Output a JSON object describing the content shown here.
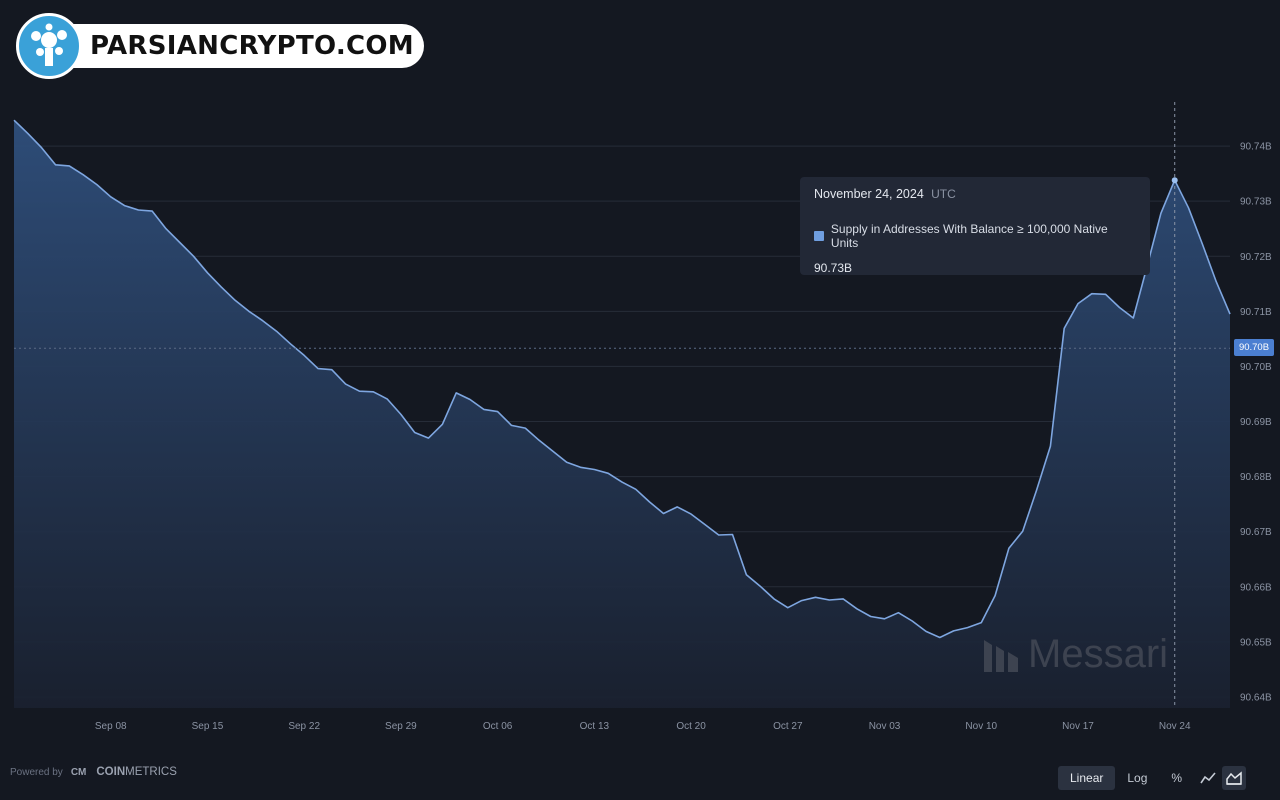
{
  "brand": {
    "text": "PARSIANCRYPTO.COM"
  },
  "watermark": {
    "text": "Messari"
  },
  "footer": {
    "powered_by": "Powered by",
    "provider_bold": "COIN",
    "provider_thin": "METRICS",
    "provider_icon": "CM"
  },
  "controls": {
    "scale_options": [
      "Linear",
      "Log",
      "%"
    ],
    "active_scale": "Linear",
    "icons": [
      "line-chart-icon",
      "area-chart-icon"
    ],
    "active_icon": "area-chart-icon"
  },
  "tooltip": {
    "date": "November 24, 2024",
    "timezone": "UTC",
    "series_label": "Supply in Addresses With Balance ≥ 100,000 Native Units",
    "value": "90.73B",
    "series_color": "#6f9ee0"
  },
  "current_value_label": "90.70B",
  "colors": {
    "background": "#141821",
    "line": "#7ea6e0",
    "area_top": "#2f4f7c",
    "accent": "#4b7fd1"
  },
  "chart_data": {
    "type": "area",
    "title": "",
    "xlabel": "",
    "ylabel": "",
    "series": [
      {
        "name": "Supply in Addresses With Balance ≥ 100,000 Native Units",
        "x": [
          "2024-09-01",
          "2024-09-02",
          "2024-09-03",
          "2024-09-04",
          "2024-09-05",
          "2024-09-06",
          "2024-09-07",
          "2024-09-08",
          "2024-09-09",
          "2024-09-10",
          "2024-09-11",
          "2024-09-12",
          "2024-09-13",
          "2024-09-14",
          "2024-09-15",
          "2024-09-16",
          "2024-09-17",
          "2024-09-18",
          "2024-09-19",
          "2024-09-20",
          "2024-09-21",
          "2024-09-22",
          "2024-09-23",
          "2024-09-24",
          "2024-09-25",
          "2024-09-26",
          "2024-09-27",
          "2024-09-28",
          "2024-09-29",
          "2024-09-30",
          "2024-10-01",
          "2024-10-02",
          "2024-10-03",
          "2024-10-04",
          "2024-10-05",
          "2024-10-06",
          "2024-10-07",
          "2024-10-08",
          "2024-10-09",
          "2024-10-10",
          "2024-10-11",
          "2024-10-12",
          "2024-10-13",
          "2024-10-14",
          "2024-10-15",
          "2024-10-16",
          "2024-10-17",
          "2024-10-18",
          "2024-10-19",
          "2024-10-20",
          "2024-10-21",
          "2024-10-22",
          "2024-10-23",
          "2024-10-24",
          "2024-10-25",
          "2024-10-26",
          "2024-10-27",
          "2024-10-28",
          "2024-10-29",
          "2024-10-30",
          "2024-10-31",
          "2024-11-01",
          "2024-11-02",
          "2024-11-03",
          "2024-11-04",
          "2024-11-05",
          "2024-11-06",
          "2024-11-07",
          "2024-11-08",
          "2024-11-09",
          "2024-11-10",
          "2024-11-11",
          "2024-11-12",
          "2024-11-13",
          "2024-11-14",
          "2024-11-15",
          "2024-11-16",
          "2024-11-17",
          "2024-11-18",
          "2024-11-19",
          "2024-11-20",
          "2024-11-21",
          "2024-11-22",
          "2024-11-23",
          "2024-11-24",
          "2024-11-25",
          "2024-11-26",
          "2024-11-27",
          "2024-11-28"
        ],
        "values": [
          90.7447,
          90.7423,
          90.7397,
          90.7366,
          90.7364,
          90.7348,
          90.733,
          90.7308,
          90.7292,
          90.7284,
          90.7282,
          90.725,
          90.7225,
          90.72,
          90.717,
          90.7144,
          90.712,
          90.71,
          90.7083,
          90.7064,
          90.7041,
          90.702,
          90.6996,
          90.6994,
          90.6968,
          90.6955,
          90.6954,
          90.6941,
          90.6913,
          90.688,
          90.687,
          90.6895,
          90.6952,
          90.694,
          90.6922,
          90.6918,
          90.6893,
          90.6888,
          90.6866,
          90.6846,
          90.6826,
          90.6817,
          90.6813,
          90.6806,
          90.679,
          90.6777,
          90.6754,
          90.6733,
          90.6745,
          90.6732,
          90.6713,
          90.6694,
          90.6695,
          90.6622,
          90.6601,
          90.6578,
          90.6562,
          90.6575,
          90.6581,
          90.6576,
          90.6578,
          90.656,
          90.6546,
          90.6542,
          90.6553,
          90.6538,
          90.6519,
          90.6508,
          90.652,
          90.6526,
          90.6535,
          90.6584,
          90.667,
          90.6701,
          90.6775,
          90.6855,
          90.7069,
          90.7114,
          90.7132,
          90.7131,
          90.7107,
          90.7088,
          90.7182,
          90.7278,
          90.7338,
          90.7288,
          90.7222,
          90.7154,
          90.7095
        ]
      }
    ],
    "x_tick_labels": [
      "Sep 08",
      "Sep 15",
      "Sep 22",
      "Sep 29",
      "Oct 06",
      "Oct 13",
      "Oct 20",
      "Oct 27",
      "Nov 03",
      "Nov 10",
      "Nov 17",
      "Nov 24"
    ],
    "y_tick_labels": [
      "90.64B",
      "90.65B",
      "90.66B",
      "90.67B",
      "90.68B",
      "90.69B",
      "90.70B",
      "90.71B",
      "90.72B",
      "90.73B",
      "90.74B"
    ],
    "y_ticks": [
      90.64,
      90.65,
      90.66,
      90.67,
      90.68,
      90.69,
      90.7,
      90.71,
      90.72,
      90.73,
      90.74
    ],
    "ylim": [
      90.638,
      90.748
    ],
    "grid": true,
    "highlight": {
      "x": "2024-11-24",
      "value": 90.73
    },
    "current_value": 90.7033
  }
}
